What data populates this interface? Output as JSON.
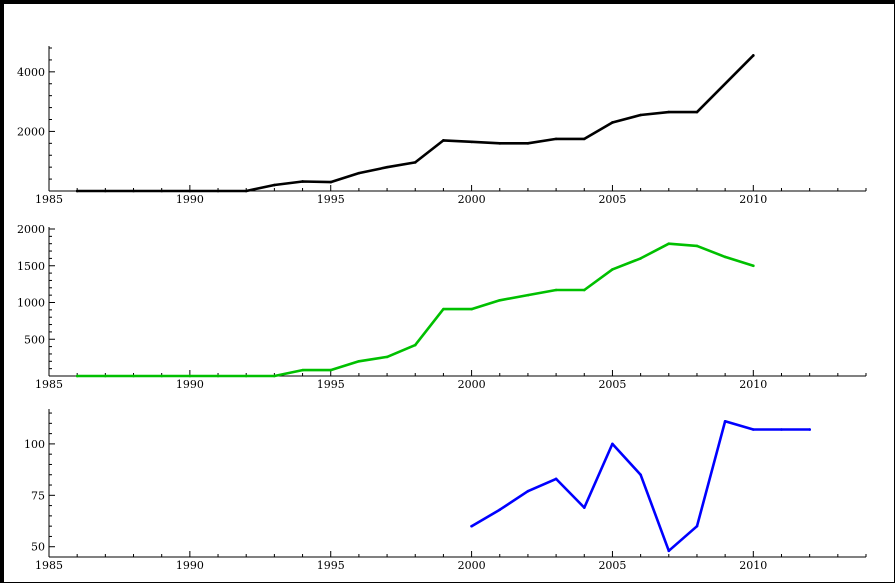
{
  "chart_data": [
    {
      "type": "line",
      "title": "",
      "xlabel": "",
      "ylabel": "",
      "xlim": [
        1985,
        2014
      ],
      "ylim": [
        0,
        4800
      ],
      "x_ticks": [
        1985,
        1990,
        1995,
        2000,
        2005,
        2010
      ],
      "y_ticks": [
        2000,
        4000
      ],
      "grid": false,
      "color": "#000000",
      "series": [
        {
          "x": [
            1986,
            1987,
            1988,
            1989,
            1990,
            1991,
            1992,
            1993,
            1994,
            1995,
            1996,
            1997,
            1998,
            1999,
            2000,
            2001,
            2002,
            2003,
            2004,
            2005,
            2006,
            2007,
            2008,
            2010
          ],
          "values": [
            0,
            0,
            0,
            0,
            0,
            0,
            0,
            200,
            320,
            300,
            600,
            800,
            960,
            1700,
            1650,
            1600,
            1600,
            1750,
            1750,
            2300,
            2550,
            2650,
            2650,
            4550
          ]
        }
      ]
    },
    {
      "type": "line",
      "title": "",
      "xlabel": "",
      "ylabel": "",
      "xlim": [
        1985,
        2014
      ],
      "ylim": [
        0,
        2000
      ],
      "x_ticks": [
        1985,
        1990,
        1995,
        2000,
        2005,
        2010
      ],
      "y_ticks": [
        500,
        1000,
        1500,
        2000
      ],
      "grid": false,
      "color": "#00c000",
      "series": [
        {
          "x": [
            1986,
            1987,
            1988,
            1989,
            1990,
            1991,
            1992,
            1993,
            1994,
            1995,
            1996,
            1997,
            1998,
            1999,
            2000,
            2001,
            2002,
            2003,
            2004,
            2005,
            2006,
            2007,
            2008,
            2009,
            2010
          ],
          "values": [
            0,
            0,
            0,
            0,
            0,
            0,
            0,
            0,
            80,
            80,
            200,
            260,
            420,
            910,
            910,
            1030,
            1100,
            1170,
            1170,
            1450,
            1600,
            1800,
            1770,
            1620,
            1500
          ]
        }
      ]
    },
    {
      "type": "line",
      "title": "",
      "xlabel": "",
      "ylabel": "",
      "xlim": [
        1985,
        2014
      ],
      "ylim": [
        45,
        116
      ],
      "x_ticks": [
        1985,
        1990,
        1995,
        2000,
        2005,
        2010
      ],
      "y_ticks": [
        50,
        75,
        100
      ],
      "grid": false,
      "color": "#0000ff",
      "series": [
        {
          "x": [
            2000,
            2001,
            2002,
            2003,
            2004,
            2005,
            2006,
            2007,
            2008,
            2009,
            2010,
            2011,
            2012
          ],
          "values": [
            60,
            68,
            77,
            83,
            69,
            100,
            85,
            48,
            60,
            111,
            107,
            107,
            107
          ]
        }
      ]
    }
  ]
}
